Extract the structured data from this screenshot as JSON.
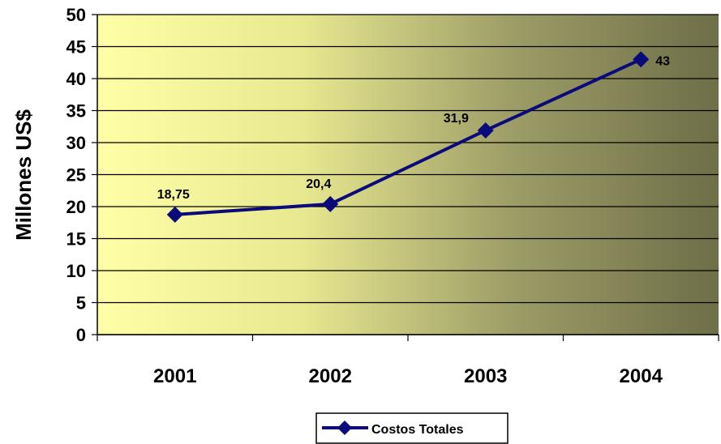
{
  "chart_data": {
    "type": "line",
    "categories": [
      "2001",
      "2002",
      "2003",
      "2004"
    ],
    "series": [
      {
        "name": "Costos Totales",
        "values": [
          18.75,
          20.4,
          31.9,
          43
        ],
        "color": "#0a0a7a"
      }
    ],
    "data_labels": [
      "18,75",
      "20,4",
      "31,9",
      "43"
    ],
    "ylabel": "Millones US$",
    "xlabel": "",
    "ylim": [
      0,
      50
    ],
    "yticks": [
      0,
      5,
      10,
      15,
      20,
      25,
      30,
      35,
      40,
      45,
      50
    ],
    "grid": true,
    "legend_position": "bottom",
    "marker": "diamond",
    "background_gradient": [
      "#ffffa8",
      "#d9d98a",
      "#8a8a5a",
      "#6e6e48"
    ]
  }
}
